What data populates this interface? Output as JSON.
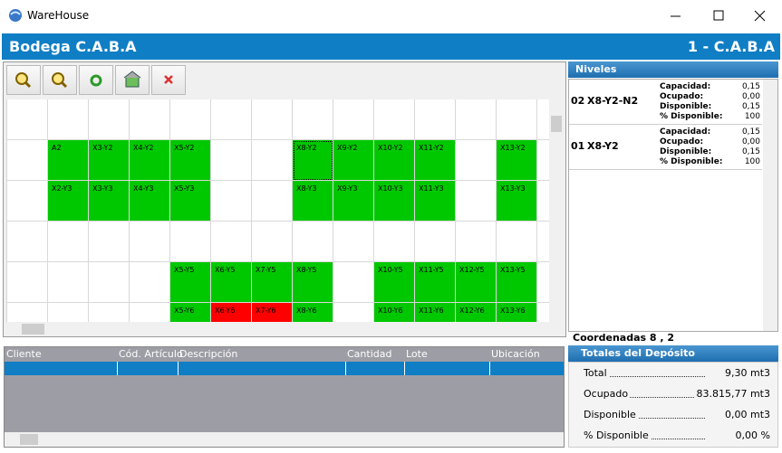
{
  "window": {
    "title": "WareHouse"
  },
  "header": {
    "left": "Bodega C.A.B.A",
    "right": "1 - C.A.B.A"
  },
  "grid": {
    "selected": "X8-Y2",
    "rows": [
      [
        null,
        null,
        null,
        null,
        null,
        null,
        null,
        null,
        null,
        null,
        null,
        null,
        null,
        null
      ],
      [
        null,
        {
          "label": "A2",
          "color": "#00c800"
        },
        {
          "label": "X3-Y2",
          "color": "#00c800"
        },
        {
          "label": "X4-Y2",
          "color": "#00c800"
        },
        {
          "label": "X5-Y2",
          "color": "#00c800"
        },
        null,
        null,
        {
          "label": "X8-Y2",
          "color": "#00c800"
        },
        {
          "label": "X9-Y2",
          "color": "#00c800"
        },
        {
          "label": "X10-Y2",
          "color": "#00c800"
        },
        {
          "label": "X11-Y2",
          "color": "#00c800"
        },
        null,
        {
          "label": "X13-Y2",
          "color": "#00c800"
        },
        null
      ],
      [
        null,
        {
          "label": "X2-Y3",
          "color": "#00c800"
        },
        {
          "label": "X3-Y3",
          "color": "#00c800"
        },
        {
          "label": "X4-Y3",
          "color": "#00c800"
        },
        {
          "label": "X5-Y3",
          "color": "#00c800"
        },
        null,
        null,
        {
          "label": "X8-Y3",
          "color": "#00c800"
        },
        {
          "label": "X9-Y3",
          "color": "#00c800"
        },
        {
          "label": "X10-Y3",
          "color": "#00c800"
        },
        {
          "label": "X11-Y3",
          "color": "#00c800"
        },
        null,
        {
          "label": "X13-Y3",
          "color": "#00c800"
        },
        null
      ],
      [
        null,
        null,
        null,
        null,
        null,
        null,
        null,
        null,
        null,
        null,
        null,
        null,
        null,
        null
      ],
      [
        null,
        null,
        null,
        null,
        {
          "label": "X5-Y5",
          "color": "#00c800"
        },
        {
          "label": "X6-Y5",
          "color": "#00c800"
        },
        {
          "label": "X7-Y5",
          "color": "#00c800"
        },
        {
          "label": "X8-Y5",
          "color": "#00c800"
        },
        null,
        {
          "label": "X10-Y5",
          "color": "#00c800"
        },
        {
          "label": "X11-Y5",
          "color": "#00c800"
        },
        {
          "label": "X12-Y5",
          "color": "#00c800"
        },
        {
          "label": "X13-Y5",
          "color": "#00c800"
        },
        null
      ],
      [
        null,
        null,
        null,
        null,
        {
          "label": "X5-Y6",
          "color": "#00c800"
        },
        {
          "label": "X6-Y6",
          "color": "#ff0000"
        },
        {
          "label": "X7-Y6",
          "color": "#ff0000"
        },
        {
          "label": "X8-Y6",
          "color": "#00c800"
        },
        null,
        {
          "label": "X10-Y6",
          "color": "#00c800"
        },
        {
          "label": "X11-Y6",
          "color": "#00c800"
        },
        {
          "label": "X12-Y6",
          "color": "#00c800"
        },
        {
          "label": "X13-Y6",
          "color": "#00c800"
        },
        null
      ]
    ]
  },
  "levels": {
    "title": "Niveles",
    "items": [
      {
        "code": "02",
        "name": "X8-Y2-N2",
        "fields": [
          {
            "label": "Capacidad:",
            "value": "0,15"
          },
          {
            "label": "Ocupado:",
            "value": "0,00"
          },
          {
            "label": "Disponible:",
            "value": "0,15"
          },
          {
            "label": "% Disponible:",
            "value": "100"
          }
        ]
      },
      {
        "code": "01",
        "name": "X8-Y2",
        "fields": [
          {
            "label": "Capacidad:",
            "value": "0,15"
          },
          {
            "label": "Ocupado:",
            "value": "0,00"
          },
          {
            "label": "Disponible:",
            "value": "0,15"
          },
          {
            "label": "% Disponible:",
            "value": "100"
          }
        ]
      }
    ]
  },
  "coordinates": "Coordenadas 8 , 2",
  "totals": {
    "title": "Totales del Depósito",
    "rows": [
      {
        "label": "Total",
        "value": "9,30 mt3"
      },
      {
        "label": "Ocupado",
        "value": "83.815,77 mt3"
      },
      {
        "label": "Disponible",
        "value": "0,00 mt3"
      },
      {
        "label": "% Disponible",
        "value": "0,00 %"
      }
    ]
  },
  "table": {
    "columns": [
      "Cliente",
      "Cód. Artículo",
      "Descripción",
      "Cantidad",
      "Lote",
      "Ubicación"
    ]
  }
}
